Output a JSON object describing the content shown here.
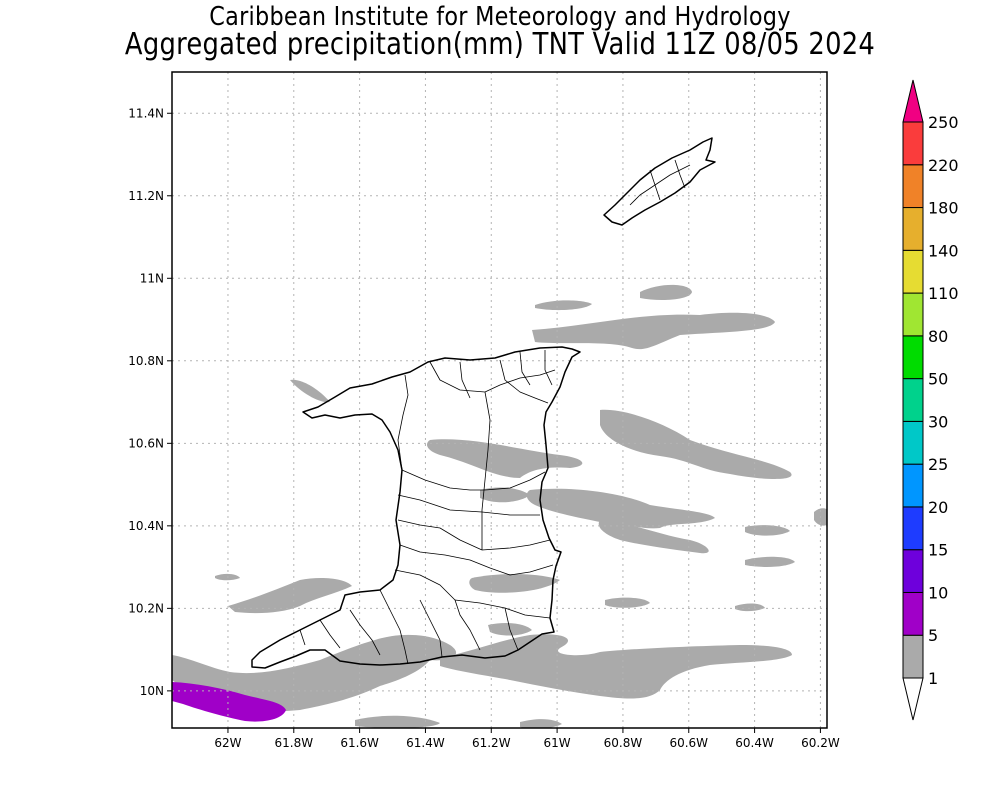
{
  "header": {
    "institute": "Caribbean Institute for Meteorology and Hydrology",
    "product": "Aggregated precipitation(mm) TNT Valid 11Z 08/05 2024"
  },
  "map": {
    "lon_range": [
      -62.17,
      -60.18
    ],
    "lat_range": [
      9.91,
      11.5
    ],
    "lon_ticks": [
      {
        "value": -62.0,
        "label": "62W"
      },
      {
        "value": -61.8,
        "label": "61.8W"
      },
      {
        "value": -61.6,
        "label": "61.6W"
      },
      {
        "value": -61.4,
        "label": "61.4W"
      },
      {
        "value": -61.2,
        "label": "61.2W"
      },
      {
        "value": -61.0,
        "label": "61W"
      },
      {
        "value": -60.8,
        "label": "60.8W"
      },
      {
        "value": -60.6,
        "label": "60.6W"
      },
      {
        "value": -60.4,
        "label": "60.4W"
      },
      {
        "value": -60.2,
        "label": "60.2W"
      }
    ],
    "lat_ticks": [
      {
        "value": 10.0,
        "label": "10N"
      },
      {
        "value": 10.2,
        "label": "10.2N"
      },
      {
        "value": 10.4,
        "label": "10.4N"
      },
      {
        "value": 10.6,
        "label": "10.6N"
      },
      {
        "value": 10.8,
        "label": "10.8N"
      },
      {
        "value": 11.0,
        "label": "11N"
      },
      {
        "value": 11.2,
        "label": "11.2N"
      },
      {
        "value": 11.4,
        "label": "11.4N"
      }
    ],
    "grid": true,
    "gridline_style": "dotted"
  },
  "colorbar": {
    "levels": [
      "1",
      "5",
      "10",
      "15",
      "20",
      "25",
      "30",
      "50",
      "80",
      "110",
      "140",
      "180",
      "220",
      "250"
    ],
    "bins": [
      {
        "color": "#aaaaaa"
      },
      {
        "color": "#a000c8"
      },
      {
        "color": "#6e00dc"
      },
      {
        "color": "#1e3cff"
      },
      {
        "color": "#0096ff"
      },
      {
        "color": "#00c8c8"
      },
      {
        "color": "#00d28c"
      },
      {
        "color": "#00dc00"
      },
      {
        "color": "#a0e632"
      },
      {
        "color": "#e6dc32"
      },
      {
        "color": "#e6af2d"
      },
      {
        "color": "#f08228"
      },
      {
        "color": "#fa3c3c"
      }
    ],
    "under_color": "#ffffff",
    "over_color": "#f00082"
  }
}
